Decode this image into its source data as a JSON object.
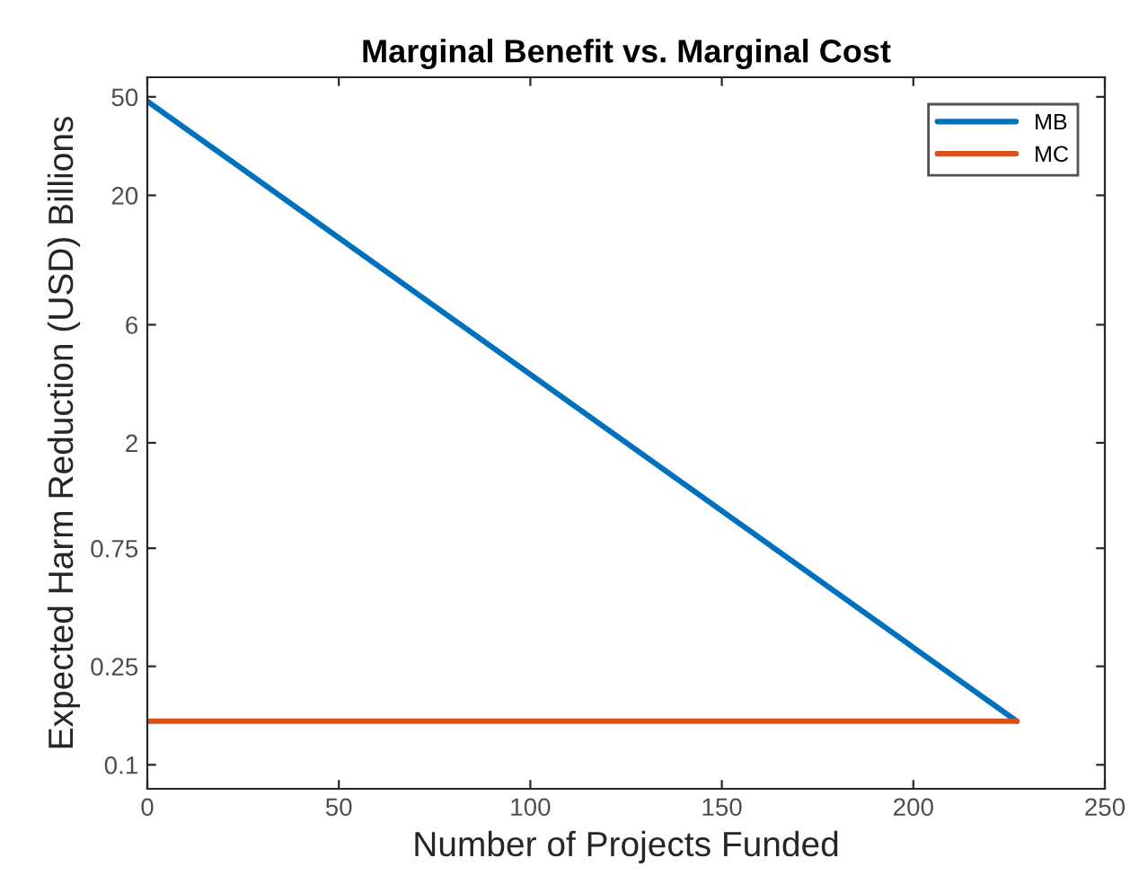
{
  "chart_data": {
    "type": "line",
    "title": "Marginal Benefit vs. Marginal Cost",
    "xlabel": "Number of Projects Funded",
    "ylabel": "Expected Harm Reduction (USD) Billions",
    "x": [
      0,
      227
    ],
    "series": [
      {
        "name": "MB",
        "color": "#0072bd",
        "values": [
          48,
          0.15
        ]
      },
      {
        "name": "MC",
        "color": "#d95319",
        "values": [
          0.15,
          0.15
        ]
      }
    ],
    "log": "y",
    "xlim": [
      0,
      250
    ],
    "xticks": [
      0,
      50,
      100,
      150,
      200,
      250
    ],
    "ylim": [
      0.08,
      60
    ],
    "yticks": [
      0.1,
      0.25,
      0.75,
      2,
      6,
      20,
      50
    ],
    "grid": false,
    "legend": "top right",
    "line_style": "solid",
    "marker": "none"
  }
}
